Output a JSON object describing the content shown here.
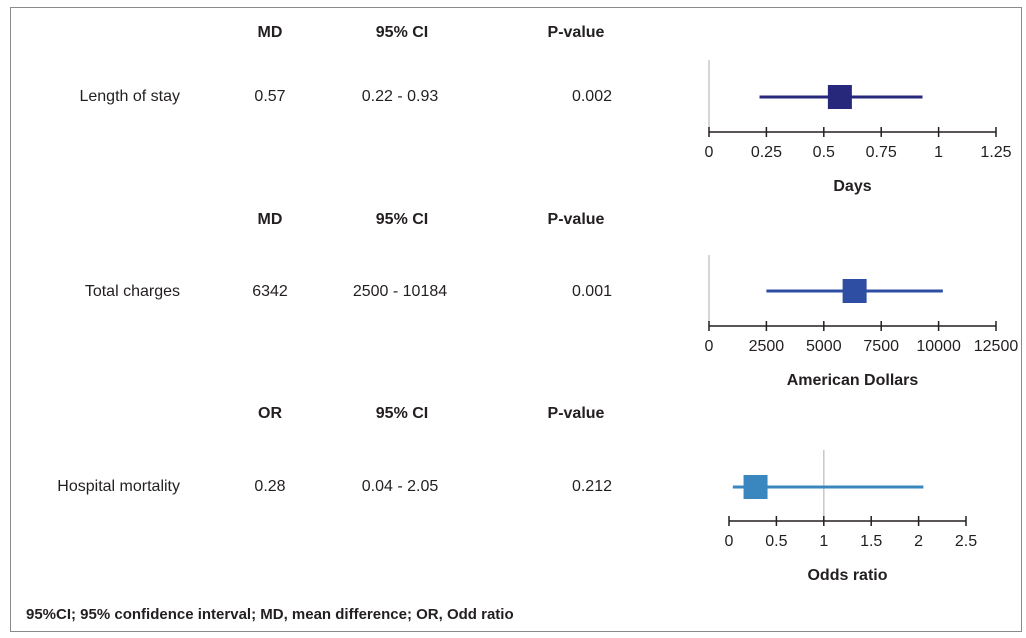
{
  "rows": [
    {
      "headers": {
        "stat": "MD",
        "ci": "95% CI",
        "p": "P-value"
      },
      "label": "Length of stay",
      "estimate": "0.57",
      "ci": "0.22 - 0.93",
      "p": "0.002"
    },
    {
      "headers": {
        "stat": "MD",
        "ci": "95% CI",
        "p": "P-value"
      },
      "label": "Total charges",
      "estimate": "6342",
      "ci": "2500 - 10184",
      "p": "0.001"
    },
    {
      "headers": {
        "stat": "OR",
        "ci": "95% CI",
        "p": "P-value"
      },
      "label": "Hospital mortality",
      "estimate": "0.28",
      "ci": "0.04 - 2.05",
      "p": "0.212"
    }
  ],
  "footnote": "95%CI; 95% confidence interval; MD, mean difference; OR, Odd ratio",
  "chart_data": [
    {
      "type": "forest",
      "series_label": "Length of stay",
      "estimate": 0.57,
      "ci_low": 0.22,
      "ci_high": 0.93,
      "xlabel": "Days",
      "xlim": [
        0,
        1.25
      ],
      "ticks": [
        0,
        0.25,
        0.5,
        0.75,
        1,
        1.25
      ],
      "tick_labels": [
        "0",
        "0.25",
        "0.5",
        "0.75",
        "1",
        "1.25"
      ],
      "reference_line": 0,
      "color": "#27287b"
    },
    {
      "type": "forest",
      "series_label": "Total charges",
      "estimate": 6342,
      "ci_low": 2500,
      "ci_high": 10184,
      "xlabel": "American Dollars",
      "xlim": [
        0,
        12500
      ],
      "ticks": [
        0,
        2500,
        5000,
        7500,
        10000,
        12500
      ],
      "tick_labels": [
        "0",
        "2500",
        "5000",
        "7500",
        "10000",
        "12500"
      ],
      "reference_line": 0,
      "color": "#2e4ea3"
    },
    {
      "type": "forest",
      "series_label": "Hospital mortality",
      "estimate": 0.28,
      "ci_low": 0.04,
      "ci_high": 2.05,
      "xlabel": "Odds ratio",
      "xlim": [
        0,
        2.5
      ],
      "ticks": [
        0,
        0.5,
        1,
        1.5,
        2,
        2.5
      ],
      "tick_labels": [
        "0",
        "0.5",
        "1",
        "1.5",
        "2",
        "2.5"
      ],
      "reference_line": 1,
      "color": "#3a87bf"
    }
  ]
}
